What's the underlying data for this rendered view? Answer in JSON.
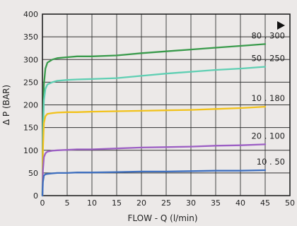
{
  "chart_data": {
    "type": "line",
    "xlabel": "FLOW - Q (l/min)",
    "ylabel": "Δ P (BAR)",
    "xlim": [
      0,
      50
    ],
    "ylim": [
      0,
      400
    ],
    "x_ticks": [
      0,
      5,
      10,
      15,
      20,
      25,
      30,
      35,
      40,
      45,
      50
    ],
    "y_ticks": [
      0,
      50,
      100,
      150,
      200,
      250,
      300,
      350,
      400
    ],
    "grid": true,
    "marker_icon": "play-triangle-icon",
    "series": [
      {
        "name": "80 . 300",
        "color": "#3a9b4c",
        "x": [
          0,
          0.1,
          0.3,
          0.6,
          1,
          2,
          3,
          5,
          7,
          10,
          15,
          20,
          25,
          30,
          35,
          40,
          45
        ],
        "y": [
          0,
          150,
          245,
          280,
          293,
          300,
          303,
          305,
          307,
          307,
          309,
          314,
          318,
          322,
          326,
          330,
          334
        ]
      },
      {
        "name": "50 . 250",
        "color": "#5fcfb3",
        "x": [
          0,
          0.1,
          0.3,
          0.6,
          1,
          2,
          3,
          5,
          7,
          10,
          15,
          20,
          25,
          30,
          35,
          40,
          45
        ],
        "y": [
          0,
          130,
          210,
          235,
          245,
          250,
          253,
          255,
          256,
          257,
          259,
          264,
          269,
          273,
          277,
          280,
          284
        ]
      },
      {
        "name": "10 . 180",
        "color": "#f2c21b",
        "x": [
          0,
          0.1,
          0.3,
          0.6,
          1,
          2,
          3,
          5,
          7,
          10,
          15,
          20,
          25,
          30,
          35,
          40,
          45
        ],
        "y": [
          0,
          100,
          160,
          175,
          180,
          182,
          183,
          184,
          184,
          185,
          186,
          187,
          188,
          189,
          191,
          193,
          196
        ]
      },
      {
        "name": "20 . 100",
        "color": "#9c5fc4",
        "x": [
          0,
          0.1,
          0.3,
          0.6,
          1,
          2,
          3,
          5,
          7,
          10,
          15,
          20,
          25,
          30,
          35,
          40,
          45
        ],
        "y": [
          0,
          55,
          85,
          93,
          97,
          99,
          100,
          101,
          102,
          102,
          104,
          106,
          107,
          108,
          110,
          111,
          113
        ]
      },
      {
        "name": "10 . 50",
        "color": "#3e6fbf",
        "x": [
          0,
          0.1,
          0.3,
          0.6,
          1,
          2,
          3,
          5,
          7,
          10,
          15,
          20,
          25,
          30,
          35,
          40,
          45
        ],
        "y": [
          0,
          30,
          44,
          47,
          48,
          49,
          50,
          50,
          51,
          51,
          52,
          53,
          53,
          54,
          55,
          55,
          56
        ]
      }
    ]
  }
}
